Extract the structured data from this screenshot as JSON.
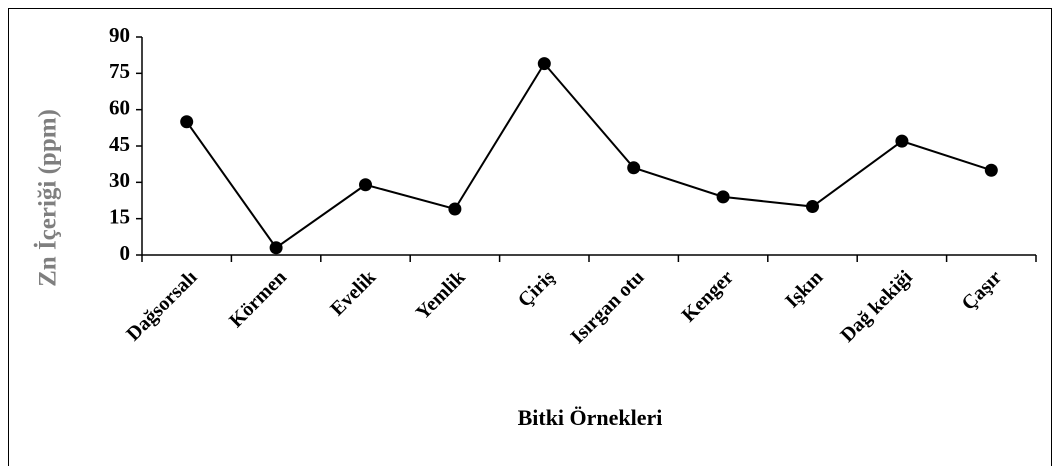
{
  "chart_data": {
    "type": "line",
    "categories": [
      "Dağsorsalı",
      "Körmen",
      "Evelik",
      "Yemlik",
      "Çiriş",
      "Isırgan otu",
      "Kenger",
      "Işkın",
      "Dağ kekiği",
      "Çaşır"
    ],
    "values": [
      55,
      3,
      29,
      19,
      79,
      36,
      24,
      20,
      47,
      35
    ],
    "color": "#000000",
    "ylim": [
      0,
      90
    ],
    "yticks": [
      0,
      15,
      30,
      45,
      60,
      75,
      90
    ],
    "xlabel": "Bitki Örnekleri",
    "ylabel": "Zn İçeriği (ppm)"
  }
}
